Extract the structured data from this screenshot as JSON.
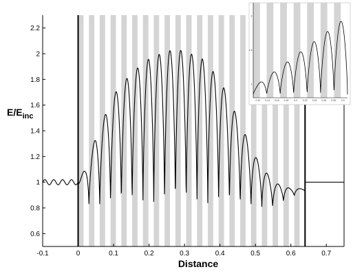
{
  "chart_data": [
    {
      "type": "line",
      "title": "",
      "xlabel": "Distance",
      "ylabel": {
        "main": "E/E",
        "sub": "inc"
      },
      "xlim": [
        -0.1,
        0.75
      ],
      "ylim": [
        0.5,
        2.3
      ],
      "xticks": [
        "-0.1",
        "0",
        "0.1",
        "0.2",
        "0.3",
        "0.4",
        "0.5",
        "0.6",
        "0.7"
      ],
      "yticks": [
        "0.6",
        "0.8",
        "1",
        "1.2",
        "1.4",
        "1.6",
        "1.8",
        "2",
        "2.2"
      ],
      "grid": false,
      "slab": {
        "start": 0,
        "end": 0.64,
        "stripe_count": 42
      },
      "series": [
        {
          "description_free_values": true,
          "x": [
            -0.1,
            -0.075,
            -0.05,
            -0.025,
            0.0,
            0.02,
            0.05,
            0.1,
            0.15,
            0.2,
            0.25,
            0.28,
            0.3,
            0.35,
            0.4,
            0.45,
            0.5,
            0.55,
            0.6,
            0.64,
            0.64,
            0.75
          ],
          "envelope_max": [
            1.02,
            1.02,
            1.02,
            1.02,
            1.02,
            1.1,
            1.35,
            1.68,
            1.85,
            1.96,
            2.02,
            2.03,
            2.02,
            1.96,
            1.8,
            1.5,
            1.2,
            1.0,
            0.95,
            0.95,
            1.0,
            1.0
          ],
          "envelope_min": [
            0.98,
            0.98,
            0.98,
            0.98,
            0.98,
            0.82,
            0.8,
            0.8,
            0.8,
            0.8,
            0.8,
            0.8,
            0.8,
            0.8,
            0.8,
            0.8,
            0.8,
            0.8,
            0.88,
            0.93,
            1.0,
            1.0
          ]
        }
      ],
      "colors": {
        "stripe": "#d4d4d4",
        "line": "#000000",
        "background": "#ffffff"
      }
    },
    {
      "type": "line",
      "title": "",
      "inset": true,
      "xticks": [
        "0.12",
        "0.14",
        "0.16",
        "0.18",
        "0.2",
        "0.22",
        "0.24",
        "0.26",
        "0.28",
        "0.3"
      ],
      "yticks": [
        "1",
        "1.5",
        "2"
      ]
    }
  ]
}
